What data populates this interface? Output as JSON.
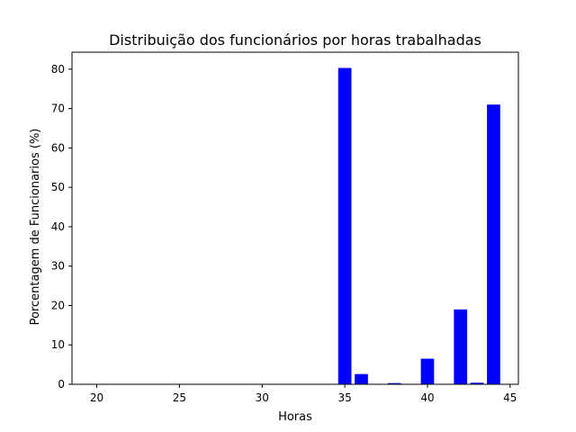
{
  "chart_data": {
    "type": "bar",
    "title": "Distribuição dos funcionários por horas trabalhadas",
    "xlabel": "Horas",
    "ylabel": "Porcentagem de Funcionarios (%)",
    "x": [
      35,
      36,
      38,
      40,
      42,
      43,
      44
    ],
    "values": [
      80.3,
      2.6,
      0.3,
      6.5,
      19.0,
      0.4,
      71.0
    ],
    "xlim": [
      18.5,
      45.5
    ],
    "ylim": [
      0,
      84.3
    ],
    "xticks": [
      20,
      25,
      30,
      35,
      40,
      45
    ],
    "yticks": [
      0,
      10,
      20,
      30,
      40,
      50,
      60,
      70,
      80
    ],
    "bar_color": "#0000ff",
    "bar_width": 0.8,
    "grid": false,
    "legend": "none"
  }
}
